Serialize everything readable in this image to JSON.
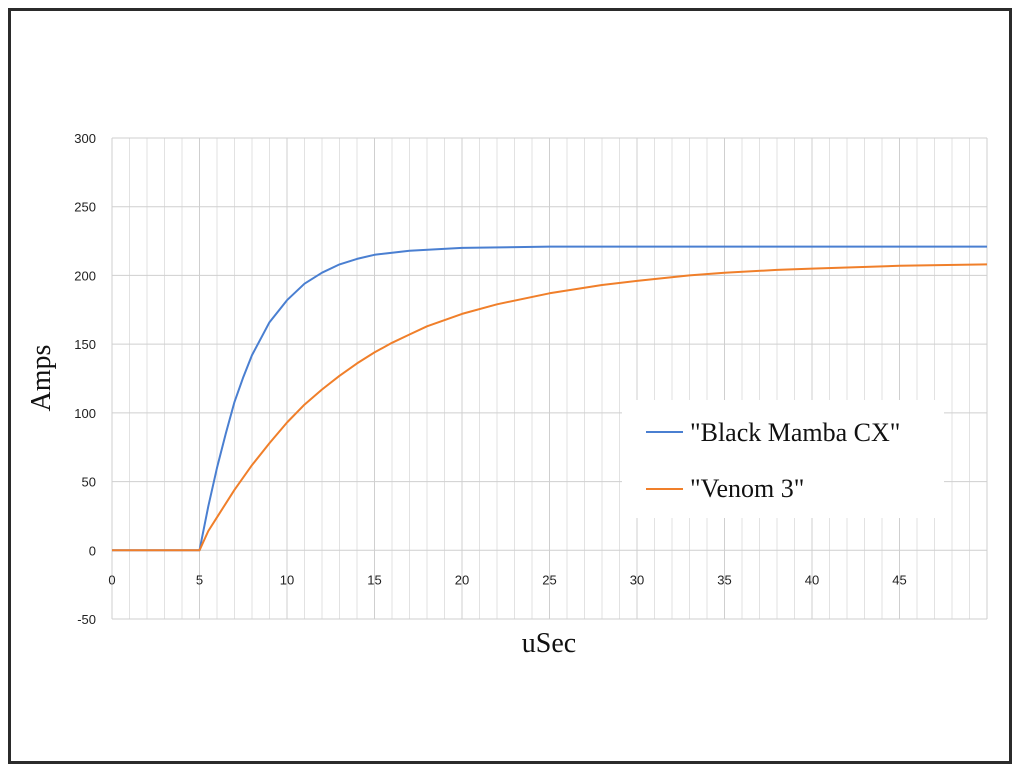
{
  "chart_data": {
    "type": "line",
    "xlabel": "uSec",
    "ylabel": "Amps",
    "xlim": [
      0,
      50
    ],
    "ylim": [
      -50,
      300
    ],
    "x_ticks": [
      0,
      5,
      10,
      15,
      20,
      25,
      30,
      35,
      40,
      45
    ],
    "y_ticks": [
      -50,
      0,
      50,
      100,
      150,
      200,
      250,
      300
    ],
    "x_minor_step": 1,
    "grid": true,
    "legend_position": "center-right",
    "series": [
      {
        "name": "\"Black Mamba CX\"",
        "color": "#4a7fd1",
        "x": [
          0,
          5,
          5.5,
          6,
          6.5,
          7,
          7.5,
          8,
          9,
          10,
          11,
          12,
          13,
          14,
          15,
          17,
          20,
          25,
          30,
          35,
          40,
          45,
          50
        ],
        "y": [
          0,
          0,
          32,
          60,
          85,
          108,
          126,
          142,
          166,
          182,
          194,
          202,
          208,
          212,
          215,
          218,
          220,
          221,
          221,
          221,
          221,
          221,
          221
        ]
      },
      {
        "name": "\"Venom 3\"",
        "color": "#f07f2a",
        "x": [
          0,
          5,
          5.5,
          6,
          7,
          8,
          9,
          10,
          11,
          12,
          13,
          14,
          15,
          16,
          17,
          18,
          20,
          22,
          25,
          28,
          30,
          33,
          35,
          38,
          40,
          45,
          50
        ],
        "y": [
          0,
          0,
          14,
          24,
          44,
          62,
          78,
          93,
          106,
          117,
          127,
          136,
          144,
          151,
          157,
          163,
          172,
          179,
          187,
          193,
          196,
          200,
          202,
          204,
          205,
          207,
          208
        ]
      }
    ]
  }
}
